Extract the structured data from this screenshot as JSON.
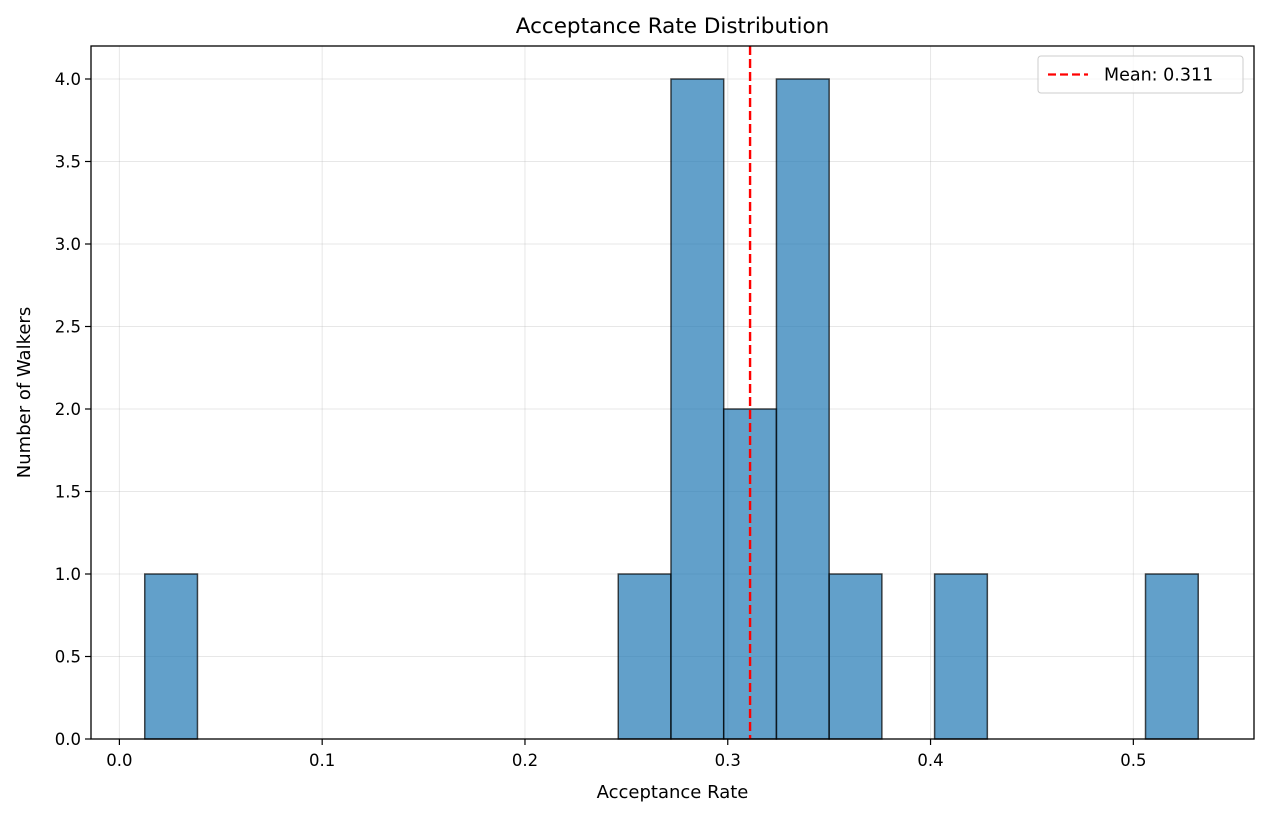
{
  "chart_data": {
    "type": "bar",
    "subtype": "histogram",
    "title": "Acceptance Rate Distribution",
    "xlabel": "Acceptance Rate",
    "ylabel": "Number of Walkers",
    "xlim": [
      -0.014,
      0.5595
    ],
    "ylim": [
      0,
      4.2
    ],
    "xticks": [
      0.0,
      0.1,
      0.2,
      0.3,
      0.4,
      0.5
    ],
    "xtick_labels": [
      "0.0",
      "0.1",
      "0.2",
      "0.3",
      "0.4",
      "0.5"
    ],
    "yticks": [
      0.0,
      0.5,
      1.0,
      1.5,
      2.0,
      2.5,
      3.0,
      3.5,
      4.0
    ],
    "ytick_labels": [
      "0.0",
      "0.5",
      "1.0",
      "1.5",
      "2.0",
      "2.5",
      "3.0",
      "3.5",
      "4.0"
    ],
    "grid": true,
    "bins": [
      {
        "x0": 0.0125,
        "x1": 0.0385,
        "count": 1
      },
      {
        "x0": 0.246,
        "x1": 0.272,
        "count": 1
      },
      {
        "x0": 0.272,
        "x1": 0.298,
        "count": 4
      },
      {
        "x0": 0.298,
        "x1": 0.324,
        "count": 2
      },
      {
        "x0": 0.324,
        "x1": 0.35,
        "count": 4
      },
      {
        "x0": 0.35,
        "x1": 0.376,
        "count": 1
      },
      {
        "x0": 0.402,
        "x1": 0.428,
        "count": 1
      },
      {
        "x0": 0.506,
        "x1": 0.532,
        "count": 1
      }
    ],
    "bar_color": "#1f77b4",
    "bar_alpha": 0.7,
    "bar_edge_color": "#000000",
    "mean_line": {
      "value": 0.311,
      "color": "#ff0000",
      "style": "dashed",
      "label": "Mean: 0.311"
    },
    "legend": {
      "position": "top-right",
      "entries": [
        "Mean: 0.311"
      ]
    }
  }
}
